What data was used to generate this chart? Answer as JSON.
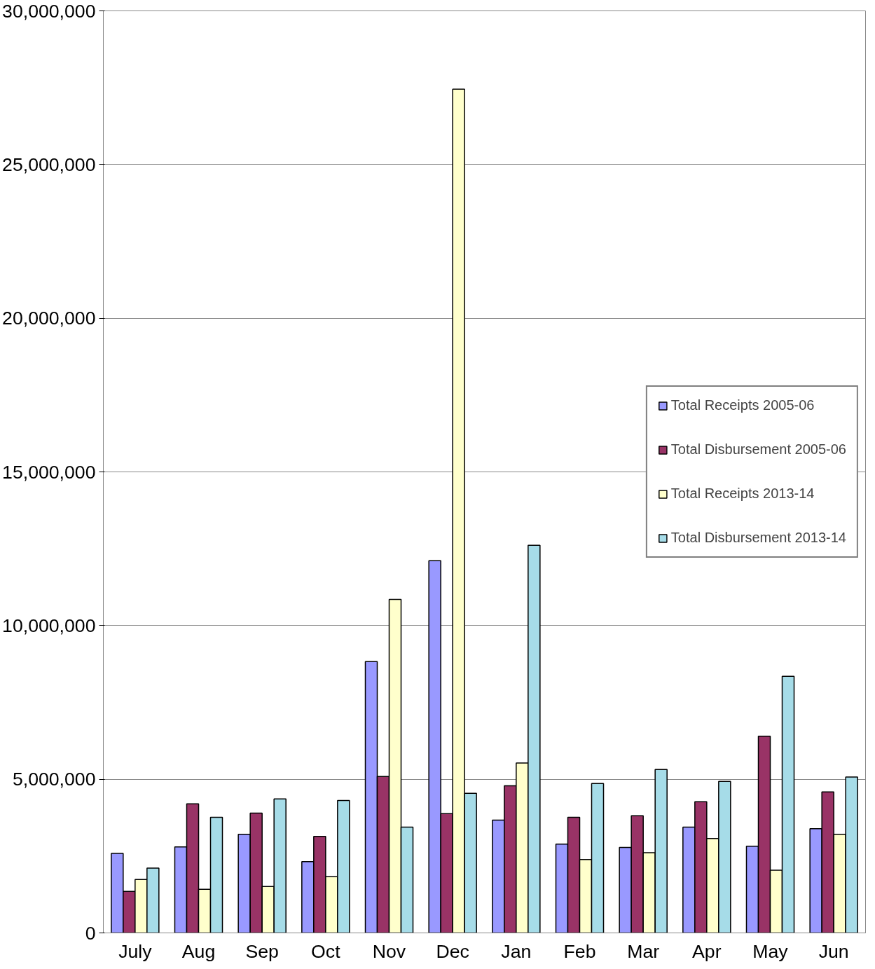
{
  "chart_data": {
    "type": "bar",
    "categories": [
      "July",
      "Aug",
      "Sep",
      "Oct",
      "Nov",
      "Dec",
      "Jan",
      "Feb",
      "Mar",
      "Apr",
      "May",
      "Jun"
    ],
    "series": [
      {
        "name": "Total Receipts 2005-06",
        "color": "#9999ff",
        "values": [
          2590000,
          2800000,
          3210000,
          2320000,
          8830000,
          12110000,
          3670000,
          2890000,
          2780000,
          3440000,
          2820000,
          3390000
        ]
      },
      {
        "name": "Total Disbursement 2005-06",
        "color": "#993366",
        "values": [
          1350000,
          4200000,
          3900000,
          3140000,
          5090000,
          3880000,
          4790000,
          3760000,
          3810000,
          4270000,
          6400000,
          4590000
        ]
      },
      {
        "name": "Total Receipts 2013-14",
        "color": "#ffffcc",
        "values": [
          1740000,
          1420000,
          1510000,
          1830000,
          10850000,
          27450000,
          5530000,
          2390000,
          2610000,
          3070000,
          2040000,
          3210000
        ]
      },
      {
        "name": "Total Disbursement 2013-14",
        "color": "#a6dce8",
        "values": [
          2110000,
          3760000,
          4360000,
          4310000,
          3440000,
          4540000,
          12610000,
          4860000,
          5320000,
          4930000,
          8350000,
          5070000
        ]
      }
    ],
    "ylim": [
      0,
      30000000
    ],
    "yticks": [
      0,
      {
        "value": 5000000,
        "label": "5,000,000"
      },
      {
        "value": 10000000,
        "label": "10,000,000"
      },
      {
        "value": 15000000,
        "label": "15,000,000"
      },
      {
        "value": 20000000,
        "label": "20,000,000"
      },
      {
        "value": 25000000,
        "label": "25,000,000"
      },
      {
        "value": 30000000,
        "label": "30,000,000"
      }
    ],
    "grid": "y",
    "legend": "right"
  }
}
